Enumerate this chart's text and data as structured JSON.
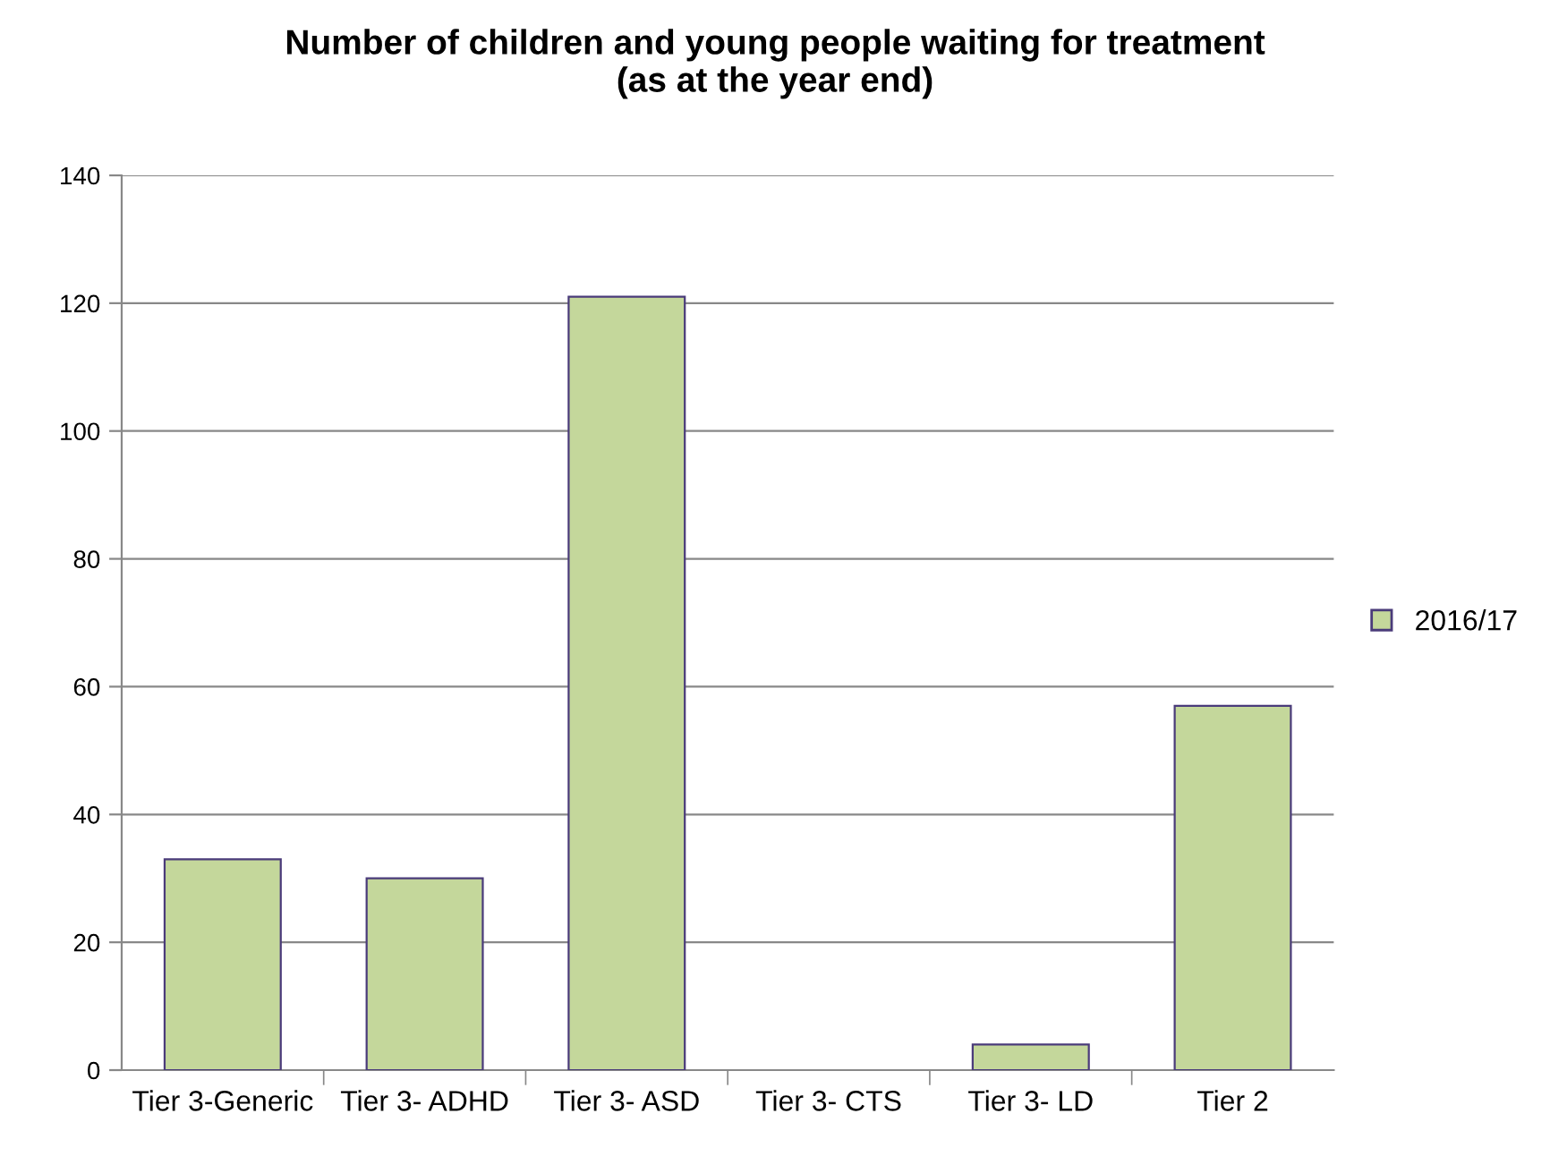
{
  "chart_data": {
    "type": "bar",
    "title": "Number of children and young people waiting for treatment\n(as at the year end)",
    "categories": [
      "Tier 3-Generic",
      "Tier 3- ADHD",
      "Tier 3- ASD",
      "Tier 3- CTS",
      "Tier 3- LD",
      "Tier 2"
    ],
    "series": [
      {
        "name": "2016/17",
        "color": "#c4d79b",
        "values": [
          33,
          30,
          121,
          0,
          4,
          57
        ]
      }
    ],
    "ylim": [
      0,
      140
    ],
    "yticks": [
      0,
      20,
      40,
      60,
      80,
      100,
      120,
      140
    ],
    "grid": "y",
    "legend": "right"
  }
}
